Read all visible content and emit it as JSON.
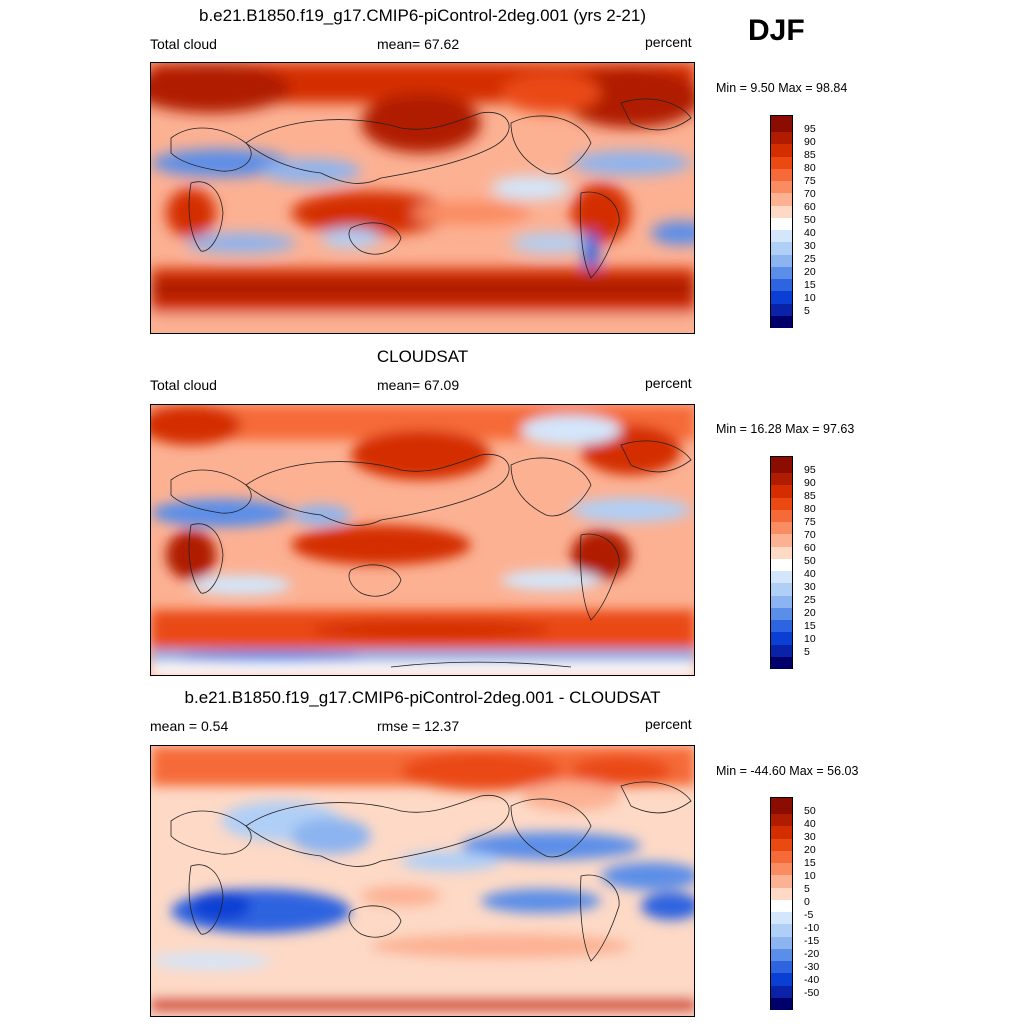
{
  "season": "DJF",
  "panels": [
    {
      "title": "b.e21.B1850.f19_g17.CMIP6-piControl-2deg.001 (yrs 2-21)",
      "left_label": "Total cloud",
      "center_label": "mean=  67.62",
      "units": "percent",
      "minmax": "Min =   9.50 Max =  98.84"
    },
    {
      "title": "CLOUDSAT",
      "left_label": "Total cloud",
      "center_label": "mean=  67.09",
      "units": "percent",
      "minmax": "Min =  16.28 Max =  97.63"
    },
    {
      "title": "b.e21.B1850.f19_g17.CMIP6-piControl-2deg.001 - CLOUDSAT",
      "left_label": "mean =   0.54",
      "center_label": "rmse =  12.37",
      "units": "percent",
      "minmax": "Min = -44.60 Max =  56.03"
    }
  ],
  "colorbar_abs": {
    "labels": [
      "95",
      "90",
      "85",
      "80",
      "75",
      "70",
      "60",
      "50",
      "40",
      "30",
      "25",
      "20",
      "15",
      "10",
      "5"
    ],
    "colors": [
      "#8b0c00",
      "#b01c00",
      "#d42e00",
      "#ea4a12",
      "#f56a38",
      "#fa8c62",
      "#fcb193",
      "#fdd9c6",
      "#ffffff",
      "#d3e6fb",
      "#b0cff6",
      "#8cb4f0",
      "#5b8ee8",
      "#2f64e0",
      "#0b3fd4",
      "#0a22a8",
      "#00006a"
    ]
  },
  "colorbar_diff": {
    "labels": [
      "50",
      "40",
      "30",
      "20",
      "15",
      "10",
      "5",
      "0",
      "-5",
      "-10",
      "-15",
      "-20",
      "-30",
      "-40",
      "-50"
    ],
    "colors": [
      "#8b0c00",
      "#b01c00",
      "#d42e00",
      "#ea4a12",
      "#f56a38",
      "#fa8c62",
      "#fcb193",
      "#fdd9c6",
      "#ffffff",
      "#d3e6fb",
      "#b0cff6",
      "#8cb4f0",
      "#5b8ee8",
      "#2f64e0",
      "#0b3fd4",
      "#0a22a8",
      "#00006a"
    ]
  }
}
